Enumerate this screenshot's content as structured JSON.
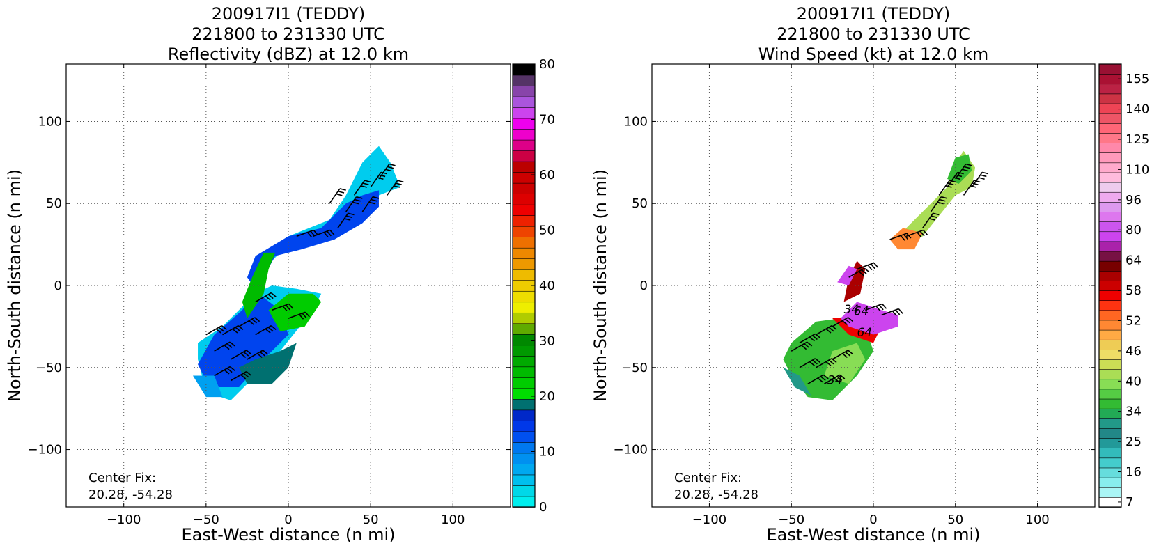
{
  "panels": [
    {
      "title_lines": [
        "200917I1 (TEDDY)",
        "221800 to 231330 UTC",
        "Reflectivity (dBZ) at 12.0 km"
      ],
      "xlabel": "East-West distance (n mi)",
      "ylabel": "North-South distance (n mi)",
      "center_fix_label": "Center Fix:",
      "center_fix_value": "20.28, -54.28"
    },
    {
      "title_lines": [
        "200917I1 (TEDDY)",
        "221800 to 231330 UTC",
        "Wind Speed (kt) at 12.0 km"
      ],
      "xlabel": "East-West distance (n mi)",
      "ylabel": "North-South distance (n mi)",
      "center_fix_label": "Center Fix:",
      "center_fix_value": "20.28, -54.28"
    }
  ],
  "chart_data": [
    {
      "type": "heatmap",
      "title": "200917I1 (TEDDY) 221800 to 231330 UTC Reflectivity (dBZ) at 12.0 km",
      "xlabel": "East-West distance (n mi)",
      "ylabel": "North-South distance (n mi)",
      "xlim": [
        -135,
        135
      ],
      "ylim": [
        -135,
        135
      ],
      "xticks": [
        -100,
        -50,
        0,
        50,
        100
      ],
      "yticks": [
        -100,
        -50,
        0,
        50,
        100
      ],
      "grid": true,
      "colorbar": {
        "ticks": [
          0,
          10,
          20,
          30,
          40,
          50,
          60,
          70,
          80
        ],
        "colors": [
          "#00eeee",
          "#00d8e8",
          "#00bfee",
          "#00a8f0",
          "#0090f0",
          "#0078f0",
          "#0050f0",
          "#0038e8",
          "#0028c8",
          "#007070",
          "#00dd00",
          "#00cc00",
          "#00bb00",
          "#00aa00",
          "#009900",
          "#008800",
          "#60aa00",
          "#b0cc00",
          "#eeee00",
          "#eedd00",
          "#eecc00",
          "#eebb00",
          "#ee9900",
          "#ee8800",
          "#ee7000",
          "#ee4400",
          "#ee2200",
          "#ee0000",
          "#dd0000",
          "#cc0000",
          "#cc0000",
          "#bb0000",
          "#cc0044",
          "#dd0088",
          "#ee00cc",
          "#ee00ee",
          "#cc44ee",
          "#aa55dd",
          "#8844aa",
          "#553366",
          "#000000"
        ]
      },
      "center_fix": [
        20.28,
        -54.28
      ]
    },
    {
      "type": "heatmap",
      "title": "200917I1 (TEDDY) 221800 to 231330 UTC Wind Speed (kt) at 12.0 km",
      "xlabel": "East-West distance (n mi)",
      "ylabel": "North-South distance (n mi)",
      "xlim": [
        -135,
        135
      ],
      "ylim": [
        -135,
        135
      ],
      "xticks": [
        -100,
        -50,
        0,
        50,
        100
      ],
      "yticks": [
        -100,
        -50,
        0,
        50,
        100
      ],
      "grid": true,
      "colorbar": {
        "ticks": [
          "7",
          "16",
          "25",
          "34",
          "40",
          "46",
          "52",
          "58",
          "64",
          "80",
          "96",
          "110",
          "125",
          "140",
          "155"
        ],
        "colors": [
          "#ffffff",
          "#aaf5f5",
          "#88eeee",
          "#66dddd",
          "#44cccc",
          "#33bbbb",
          "#229999",
          "#228888",
          "#229988",
          "#22aa55",
          "#33bb33",
          "#55cc44",
          "#88dd55",
          "#aadd55",
          "#ccdd55",
          "#eedd66",
          "#eecc55",
          "#ffaa44",
          "#ff8833",
          "#ff6622",
          "#ff3311",
          "#ee0000",
          "#cc0000",
          "#aa0000",
          "#770000",
          "#771144",
          "#aa22aa",
          "#cc44ee",
          "#cc55ee",
          "#dd77ee",
          "#dd99ee",
          "#eeaaee",
          "#eeccee",
          "#ffbbdd",
          "#ffaacc",
          "#ff99bb",
          "#ff88aa",
          "#ff7788",
          "#ff6677",
          "#ee5566",
          "#ee4455",
          "#cc3344",
          "#bb2244",
          "#aa1133",
          "#991133"
        ]
      },
      "contour_labels": [
        "34",
        "64",
        "64",
        "34"
      ],
      "center_fix": [
        20.28,
        -54.28
      ]
    }
  ]
}
